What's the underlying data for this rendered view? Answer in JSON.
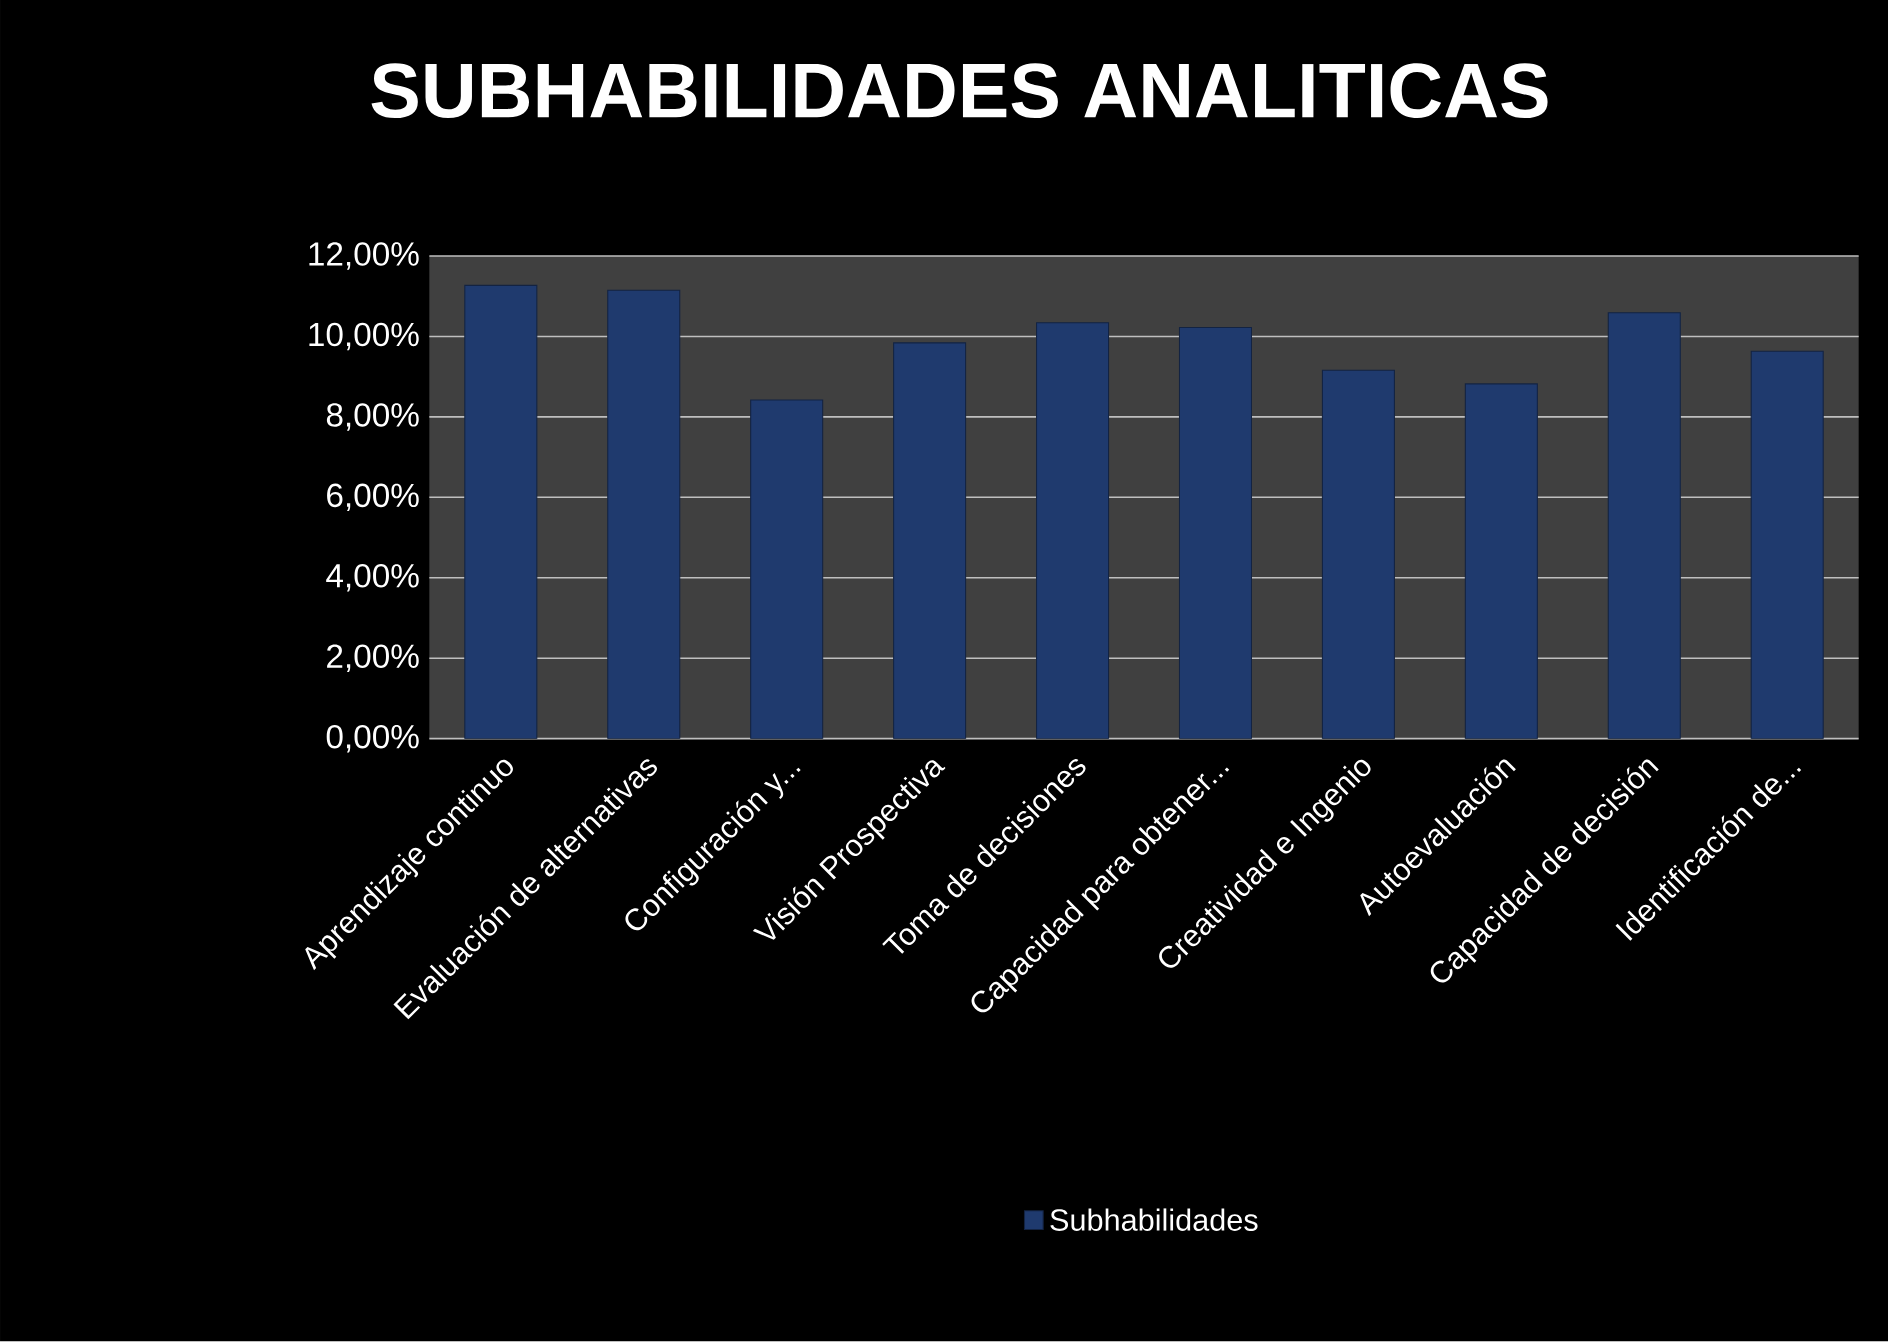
{
  "chart_data": {
    "type": "bar",
    "title": "SUBHABILIDADES ANALITICAS",
    "categories": [
      "Aprendizaje continuo",
      "Evaluación de alternativas",
      "Configuración y...",
      "Visión Prospectiva",
      "Toma de decisiones",
      "Capacidad para obtener...",
      "Creatividad e Ingenio",
      "Autoevaluación",
      "Capacidad de decisión",
      "Identificación de..."
    ],
    "series": [
      {
        "name": "Subhabilidades",
        "color": "#1f3a6e",
        "values": [
          11.27,
          11.15,
          8.42,
          9.84,
          10.34,
          10.22,
          9.16,
          8.82,
          10.59,
          9.63
        ]
      }
    ],
    "ylim": [
      0,
      12
    ],
    "yticks": [
      {
        "value": 0,
        "label": "0,00%"
      },
      {
        "value": 2,
        "label": "2,00%"
      },
      {
        "value": 4,
        "label": "4,00%"
      },
      {
        "value": 6,
        "label": "6,00%"
      },
      {
        "value": 8,
        "label": "8,00%"
      },
      {
        "value": 10,
        "label": "10,00%"
      },
      {
        "value": 12,
        "label": "12,00%"
      }
    ],
    "grid": "y",
    "legend": "bottom"
  }
}
